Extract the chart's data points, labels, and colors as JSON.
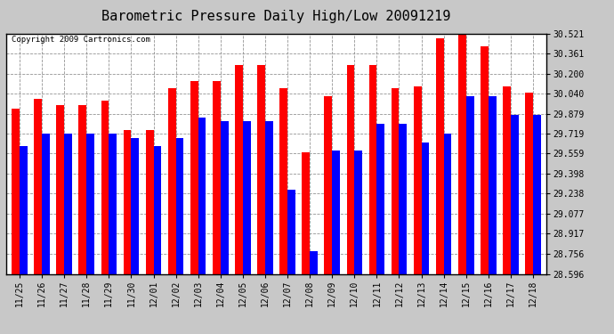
{
  "title": "Barometric Pressure Daily High/Low 20091219",
  "copyright": "Copyright 2009 Cartronics.com",
  "dates": [
    "11/25",
    "11/26",
    "11/27",
    "11/28",
    "11/29",
    "11/30",
    "12/01",
    "12/02",
    "12/03",
    "12/04",
    "12/05",
    "12/06",
    "12/07",
    "12/08",
    "12/09",
    "12/10",
    "12/11",
    "12/12",
    "12/13",
    "12/14",
    "12/15",
    "12/16",
    "12/17",
    "12/18"
  ],
  "highs": [
    29.92,
    30.0,
    29.95,
    29.95,
    29.98,
    29.75,
    29.75,
    30.08,
    30.14,
    30.14,
    30.27,
    30.27,
    30.08,
    29.57,
    30.02,
    30.27,
    30.27,
    30.08,
    30.1,
    30.48,
    30.52,
    30.42,
    30.1,
    30.05
  ],
  "lows": [
    29.62,
    29.72,
    29.72,
    29.72,
    29.72,
    29.68,
    29.62,
    29.68,
    29.85,
    29.82,
    29.82,
    29.82,
    29.27,
    28.78,
    29.58,
    29.58,
    29.8,
    29.8,
    29.65,
    29.72,
    30.02,
    30.02,
    29.87,
    29.87
  ],
  "yticks": [
    28.596,
    28.756,
    28.917,
    29.077,
    29.238,
    29.398,
    29.559,
    29.719,
    29.879,
    30.04,
    30.2,
    30.361,
    30.521
  ],
  "ymin": 28.596,
  "ymax": 30.521,
  "high_color": "#ff0000",
  "low_color": "#0000ff",
  "bg_color": "#c8c8c8",
  "plot_bg_color": "#ffffff",
  "grid_color": "#888888",
  "title_fontsize": 11,
  "bar_width": 0.35
}
